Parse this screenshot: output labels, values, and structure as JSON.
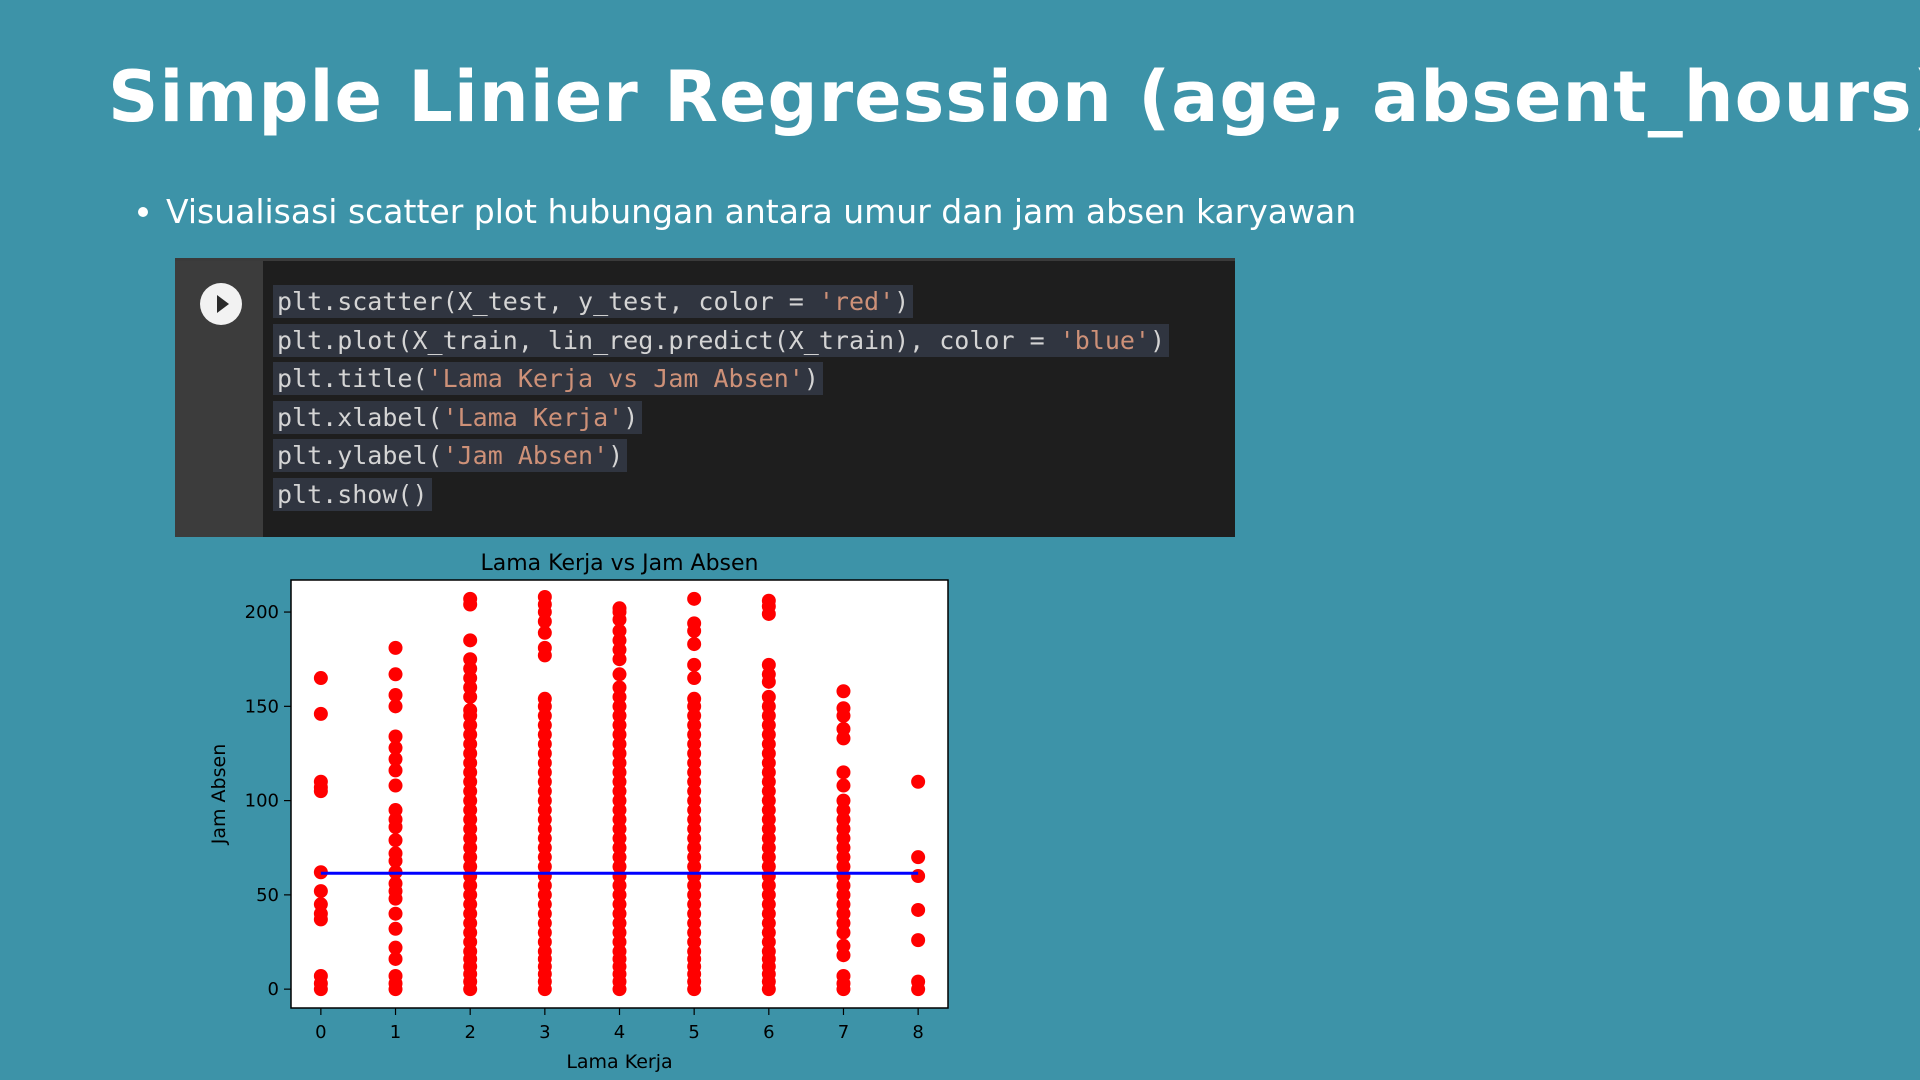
{
  "slide": {
    "title": "Simple Linier Regression (age, absent_hours)",
    "bullet": "Visualisasi scatter plot hubungan antara umur dan jam absen karyawan"
  },
  "code_cell": {
    "lines": [
      [
        {
          "t": "plt.scatter(X_test, y_test, color = "
        },
        {
          "t": "'red'",
          "s": 1
        },
        {
          "t": ")"
        }
      ],
      [
        {
          "t": "plt.plot(X_train, lin_reg.predict(X_train), color = "
        },
        {
          "t": "'blue'",
          "s": 1
        },
        {
          "t": ")"
        }
      ],
      [
        {
          "t": "plt.title("
        },
        {
          "t": "'Lama Kerja vs Jam Absen'",
          "s": 1
        },
        {
          "t": ")"
        }
      ],
      [
        {
          "t": "plt.xlabel("
        },
        {
          "t": "'Lama Kerja'",
          "s": 1
        },
        {
          "t": ")"
        }
      ],
      [
        {
          "t": "plt.ylabel("
        },
        {
          "t": "'Jam Absen'",
          "s": 1
        },
        {
          "t": ")"
        }
      ],
      [
        {
          "t": "plt.show()"
        }
      ]
    ]
  },
  "colors": {
    "background": "#3d93a8",
    "scatter": "#ff0000",
    "line": "#0000ff"
  },
  "chart_data": {
    "type": "scatter",
    "title": "Lama Kerja vs Jam Absen",
    "xlabel": "Lama Kerja",
    "ylabel": "Jam Absen",
    "xlim": [
      -0.4,
      8.4
    ],
    "ylim": [
      -10,
      217
    ],
    "xticks": [
      0,
      1,
      2,
      3,
      4,
      5,
      6,
      7,
      8
    ],
    "yticks": [
      0,
      50,
      100,
      150,
      200
    ],
    "grid": false,
    "series": [
      {
        "kind": "scatter",
        "color": "#ff0000",
        "points": [
          [
            0,
            0
          ],
          [
            0,
            3
          ],
          [
            0,
            7
          ],
          [
            0,
            37
          ],
          [
            0,
            40
          ],
          [
            0,
            45
          ],
          [
            0,
            52
          ],
          [
            0,
            62
          ],
          [
            0,
            105
          ],
          [
            0,
            107
          ],
          [
            0,
            110
          ],
          [
            0,
            146
          ],
          [
            0,
            165
          ],
          [
            1,
            0
          ],
          [
            1,
            3
          ],
          [
            1,
            7
          ],
          [
            1,
            16
          ],
          [
            1,
            22
          ],
          [
            1,
            32
          ],
          [
            1,
            40
          ],
          [
            1,
            48
          ],
          [
            1,
            52
          ],
          [
            1,
            56
          ],
          [
            1,
            62
          ],
          [
            1,
            68
          ],
          [
            1,
            72
          ],
          [
            1,
            79
          ],
          [
            1,
            86
          ],
          [
            1,
            90
          ],
          [
            1,
            95
          ],
          [
            1,
            108
          ],
          [
            1,
            116
          ],
          [
            1,
            122
          ],
          [
            1,
            128
          ],
          [
            1,
            134
          ],
          [
            1,
            150
          ],
          [
            1,
            156
          ],
          [
            1,
            167
          ],
          [
            1,
            181
          ],
          [
            2,
            0
          ],
          [
            2,
            4
          ],
          [
            2,
            8
          ],
          [
            2,
            12
          ],
          [
            2,
            16
          ],
          [
            2,
            20
          ],
          [
            2,
            25
          ],
          [
            2,
            30
          ],
          [
            2,
            35
          ],
          [
            2,
            40
          ],
          [
            2,
            45
          ],
          [
            2,
            50
          ],
          [
            2,
            55
          ],
          [
            2,
            60
          ],
          [
            2,
            65
          ],
          [
            2,
            70
          ],
          [
            2,
            75
          ],
          [
            2,
            80
          ],
          [
            2,
            85
          ],
          [
            2,
            90
          ],
          [
            2,
            95
          ],
          [
            2,
            100
          ],
          [
            2,
            105
          ],
          [
            2,
            110
          ],
          [
            2,
            115
          ],
          [
            2,
            120
          ],
          [
            2,
            125
          ],
          [
            2,
            130
          ],
          [
            2,
            135
          ],
          [
            2,
            140
          ],
          [
            2,
            145
          ],
          [
            2,
            148
          ],
          [
            2,
            155
          ],
          [
            2,
            160
          ],
          [
            2,
            165
          ],
          [
            2,
            170
          ],
          [
            2,
            175
          ],
          [
            2,
            185
          ],
          [
            2,
            204
          ],
          [
            2,
            207
          ],
          [
            3,
            0
          ],
          [
            3,
            4
          ],
          [
            3,
            8
          ],
          [
            3,
            12
          ],
          [
            3,
            16
          ],
          [
            3,
            20
          ],
          [
            3,
            25
          ],
          [
            3,
            30
          ],
          [
            3,
            35
          ],
          [
            3,
            40
          ],
          [
            3,
            45
          ],
          [
            3,
            50
          ],
          [
            3,
            55
          ],
          [
            3,
            60
          ],
          [
            3,
            65
          ],
          [
            3,
            70
          ],
          [
            3,
            75
          ],
          [
            3,
            80
          ],
          [
            3,
            85
          ],
          [
            3,
            90
          ],
          [
            3,
            95
          ],
          [
            3,
            100
          ],
          [
            3,
            105
          ],
          [
            3,
            110
          ],
          [
            3,
            115
          ],
          [
            3,
            120
          ],
          [
            3,
            125
          ],
          [
            3,
            130
          ],
          [
            3,
            135
          ],
          [
            3,
            140
          ],
          [
            3,
            145
          ],
          [
            3,
            150
          ],
          [
            3,
            154
          ],
          [
            3,
            177
          ],
          [
            3,
            181
          ],
          [
            3,
            189
          ],
          [
            3,
            195
          ],
          [
            3,
            200
          ],
          [
            3,
            204
          ],
          [
            3,
            208
          ],
          [
            4,
            0
          ],
          [
            4,
            4
          ],
          [
            4,
            8
          ],
          [
            4,
            12
          ],
          [
            4,
            16
          ],
          [
            4,
            20
          ],
          [
            4,
            25
          ],
          [
            4,
            30
          ],
          [
            4,
            35
          ],
          [
            4,
            40
          ],
          [
            4,
            45
          ],
          [
            4,
            50
          ],
          [
            4,
            55
          ],
          [
            4,
            60
          ],
          [
            4,
            65
          ],
          [
            4,
            70
          ],
          [
            4,
            75
          ],
          [
            4,
            80
          ],
          [
            4,
            85
          ],
          [
            4,
            90
          ],
          [
            4,
            95
          ],
          [
            4,
            100
          ],
          [
            4,
            105
          ],
          [
            4,
            110
          ],
          [
            4,
            115
          ],
          [
            4,
            120
          ],
          [
            4,
            125
          ],
          [
            4,
            130
          ],
          [
            4,
            135
          ],
          [
            4,
            140
          ],
          [
            4,
            145
          ],
          [
            4,
            150
          ],
          [
            4,
            155
          ],
          [
            4,
            160
          ],
          [
            4,
            167
          ],
          [
            4,
            175
          ],
          [
            4,
            180
          ],
          [
            4,
            185
          ],
          [
            4,
            190
          ],
          [
            4,
            196
          ],
          [
            4,
            200
          ],
          [
            4,
            202
          ],
          [
            5,
            0
          ],
          [
            5,
            4
          ],
          [
            5,
            8
          ],
          [
            5,
            12
          ],
          [
            5,
            16
          ],
          [
            5,
            20
          ],
          [
            5,
            25
          ],
          [
            5,
            30
          ],
          [
            5,
            35
          ],
          [
            5,
            40
          ],
          [
            5,
            45
          ],
          [
            5,
            50
          ],
          [
            5,
            55
          ],
          [
            5,
            60
          ],
          [
            5,
            65
          ],
          [
            5,
            70
          ],
          [
            5,
            75
          ],
          [
            5,
            80
          ],
          [
            5,
            85
          ],
          [
            5,
            90
          ],
          [
            5,
            95
          ],
          [
            5,
            100
          ],
          [
            5,
            105
          ],
          [
            5,
            110
          ],
          [
            5,
            115
          ],
          [
            5,
            120
          ],
          [
            5,
            125
          ],
          [
            5,
            130
          ],
          [
            5,
            135
          ],
          [
            5,
            140
          ],
          [
            5,
            145
          ],
          [
            5,
            150
          ],
          [
            5,
            154
          ],
          [
            5,
            165
          ],
          [
            5,
            172
          ],
          [
            5,
            183
          ],
          [
            5,
            190
          ],
          [
            5,
            194
          ],
          [
            5,
            207
          ],
          [
            6,
            0
          ],
          [
            6,
            4
          ],
          [
            6,
            8
          ],
          [
            6,
            12
          ],
          [
            6,
            16
          ],
          [
            6,
            20
          ],
          [
            6,
            25
          ],
          [
            6,
            30
          ],
          [
            6,
            35
          ],
          [
            6,
            40
          ],
          [
            6,
            45
          ],
          [
            6,
            50
          ],
          [
            6,
            55
          ],
          [
            6,
            60
          ],
          [
            6,
            65
          ],
          [
            6,
            70
          ],
          [
            6,
            75
          ],
          [
            6,
            80
          ],
          [
            6,
            85
          ],
          [
            6,
            90
          ],
          [
            6,
            95
          ],
          [
            6,
            100
          ],
          [
            6,
            105
          ],
          [
            6,
            110
          ],
          [
            6,
            115
          ],
          [
            6,
            120
          ],
          [
            6,
            125
          ],
          [
            6,
            130
          ],
          [
            6,
            135
          ],
          [
            6,
            140
          ],
          [
            6,
            145
          ],
          [
            6,
            150
          ],
          [
            6,
            155
          ],
          [
            6,
            163
          ],
          [
            6,
            167
          ],
          [
            6,
            172
          ],
          [
            6,
            199
          ],
          [
            6,
            203
          ],
          [
            6,
            206
          ],
          [
            7,
            0
          ],
          [
            7,
            3
          ],
          [
            7,
            7
          ],
          [
            7,
            18
          ],
          [
            7,
            23
          ],
          [
            7,
            30
          ],
          [
            7,
            35
          ],
          [
            7,
            40
          ],
          [
            7,
            45
          ],
          [
            7,
            50
          ],
          [
            7,
            55
          ],
          [
            7,
            60
          ],
          [
            7,
            65
          ],
          [
            7,
            70
          ],
          [
            7,
            75
          ],
          [
            7,
            80
          ],
          [
            7,
            85
          ],
          [
            7,
            90
          ],
          [
            7,
            95
          ],
          [
            7,
            100
          ],
          [
            7,
            108
          ],
          [
            7,
            115
          ],
          [
            7,
            133
          ],
          [
            7,
            138
          ],
          [
            7,
            145
          ],
          [
            7,
            149
          ],
          [
            7,
            158
          ],
          [
            8,
            0
          ],
          [
            8,
            4
          ],
          [
            8,
            26
          ],
          [
            8,
            42
          ],
          [
            8,
            60
          ],
          [
            8,
            70
          ],
          [
            8,
            110
          ]
        ]
      },
      {
        "kind": "line",
        "color": "#0000ff",
        "x": [
          0,
          8
        ],
        "y": [
          61.5,
          61.5
        ]
      }
    ]
  }
}
